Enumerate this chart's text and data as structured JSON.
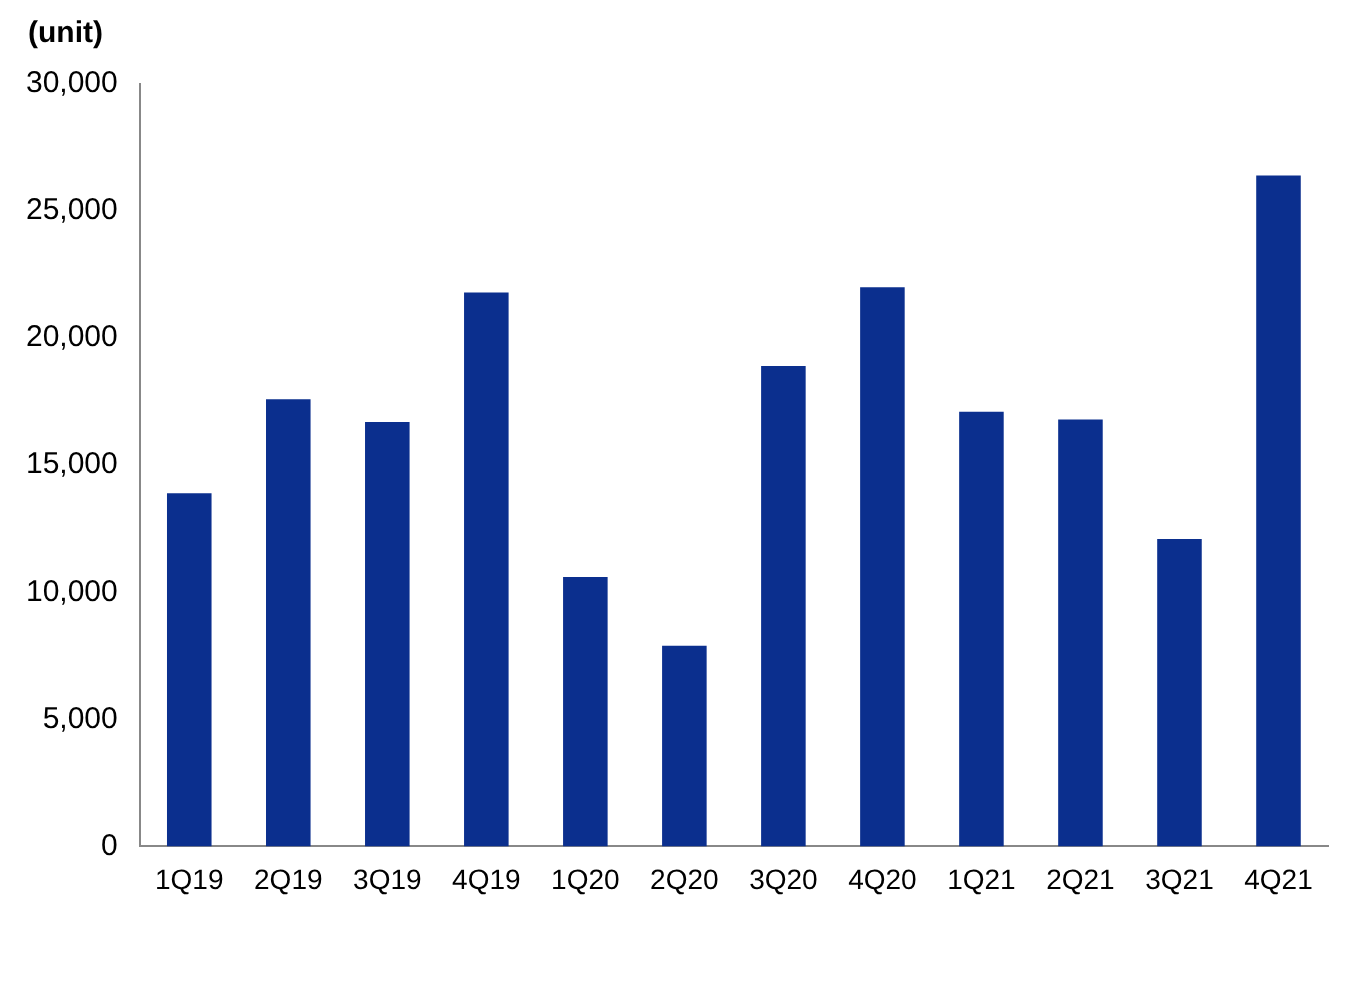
{
  "chart_data": {
    "type": "bar",
    "ylabel": "(unit)",
    "categories": [
      "1Q19",
      "2Q19",
      "3Q19",
      "4Q19",
      "1Q20",
      "2Q20",
      "3Q20",
      "4Q20",
      "1Q21",
      "2Q21",
      "3Q21",
      "4Q21"
    ],
    "series": [
      {
        "color": "#0b2f8e",
        "values": [
          13900,
          17600,
          16700,
          21800,
          10600,
          7900,
          18900,
          22000,
          17100,
          16800,
          12100,
          26400
        ]
      }
    ],
    "ylim": [
      0,
      30000
    ],
    "yticks": [
      {
        "value": 0,
        "label": "0"
      },
      {
        "value": 5000,
        "label": "5,000"
      },
      {
        "value": 10000,
        "label": "10,000"
      },
      {
        "value": 15000,
        "label": "15,000"
      },
      {
        "value": 20000,
        "label": "20,000"
      },
      {
        "value": 25000,
        "label": "25,000"
      },
      {
        "value": 30000,
        "label": "30,000"
      }
    ],
    "grid": false,
    "legend": false
  }
}
